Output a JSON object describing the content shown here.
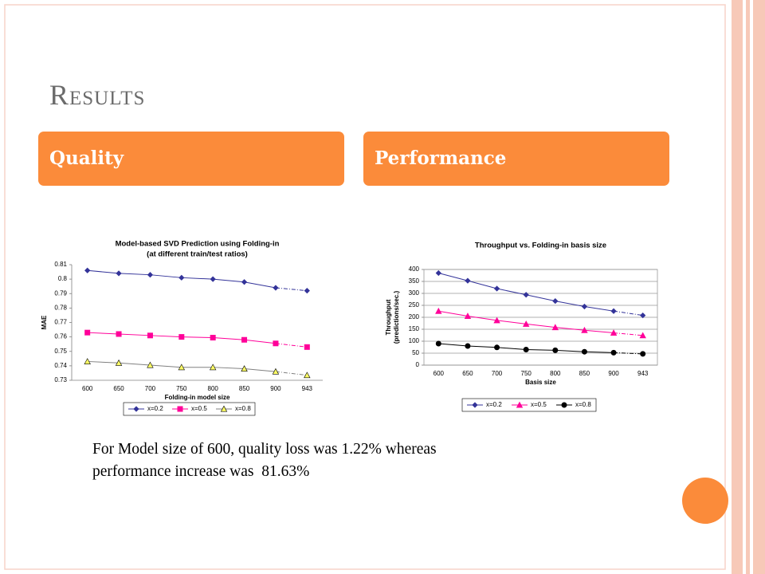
{
  "slide": {
    "title": "Results",
    "headers": [
      "Quality",
      "Performance"
    ],
    "body": [
      "For Model size of 600, quality loss was 1.22% whereas",
      "performance increase was  81.63%"
    ]
  },
  "chart_data": [
    {
      "type": "line",
      "title": [
        "Model-based SVD Prediction using Folding-in",
        "(at different train/test ratios)"
      ],
      "x_label": "Folding-in model size",
      "y_label": [
        "MAE"
      ],
      "categories": [
        "600",
        "650",
        "700",
        "750",
        "800",
        "850",
        "900",
        "943"
      ],
      "series": [
        {
          "name": "x=0.2",
          "color": "#333399",
          "line_color": "#333399",
          "marker": "diamond",
          "values": [
            0.806,
            0.804,
            0.803,
            0.801,
            0.8,
            0.798,
            0.794,
            0.792
          ]
        },
        {
          "name": "x=0.5",
          "color": "#ff0099",
          "line_color": "#ff0099",
          "marker": "square",
          "values": [
            0.763,
            0.762,
            0.761,
            0.76,
            0.7595,
            0.758,
            0.7555,
            0.753
          ]
        },
        {
          "name": "x=0.8",
          "color": "#ffff66",
          "line_color": "#808080",
          "marker": "triangle",
          "values": [
            0.743,
            0.742,
            0.7405,
            0.739,
            0.739,
            0.738,
            0.736,
            0.7335
          ]
        }
      ],
      "ylim": [
        0.73,
        0.81
      ],
      "yticks": [
        0.73,
        0.74,
        0.75,
        0.76,
        0.77,
        0.78,
        0.79,
        0.8,
        0.81
      ],
      "grid": false
    },
    {
      "type": "line",
      "title": [
        "Throughput vs. Folding-in basis size"
      ],
      "x_label": "Basis size",
      "y_label": [
        "Throughput",
        "(predictions/sec.)"
      ],
      "categories": [
        "600",
        "650",
        "700",
        "750",
        "800",
        "850",
        "900",
        "943"
      ],
      "series": [
        {
          "name": "x=0.2",
          "color": "#333399",
          "line_color": "#333399",
          "marker": "diamond",
          "values": [
            385,
            353,
            320,
            294,
            268,
            245,
            226,
            208
          ]
        },
        {
          "name": "x=0.5",
          "color": "#ff0099",
          "line_color": "#ff0099",
          "marker": "triangle",
          "values": [
            226,
            205,
            187,
            172,
            158,
            146,
            135,
            124
          ]
        },
        {
          "name": "x=0.8",
          "color": "#000000",
          "line_color": "#000000",
          "marker": "circle",
          "values": [
            90,
            80,
            74,
            65,
            62,
            56,
            52,
            47
          ]
        }
      ],
      "ylim": [
        0,
        400
      ],
      "yticks": [
        0,
        50,
        100,
        150,
        200,
        250,
        300,
        350,
        400
      ],
      "grid": true
    }
  ]
}
